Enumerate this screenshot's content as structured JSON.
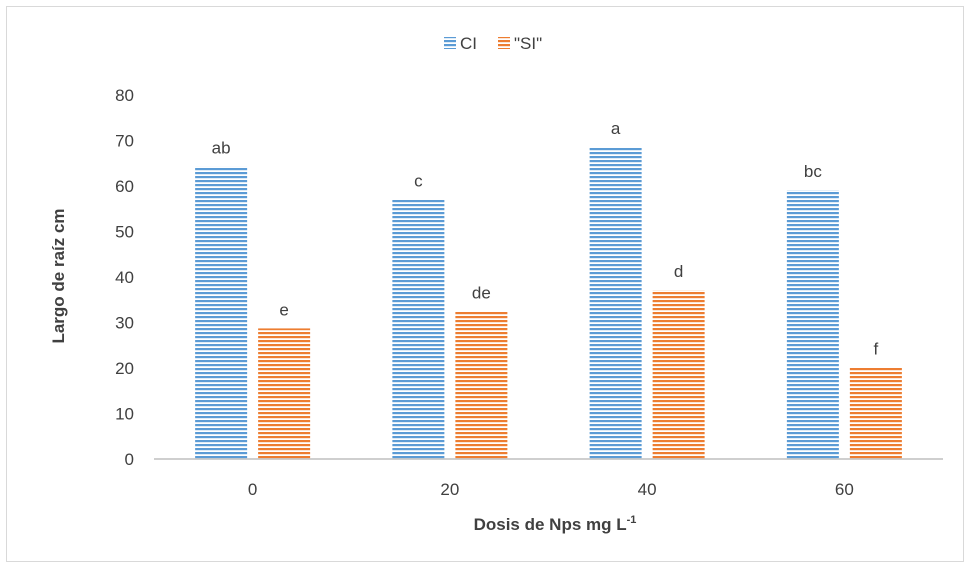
{
  "chart_data": {
    "type": "bar",
    "categories": [
      "0",
      "20",
      "40",
      "60"
    ],
    "series": [
      {
        "name": "CI",
        "color": "#5B9BD5",
        "values": [
          64.3,
          57.0,
          68.6,
          59.1
        ],
        "labels": [
          "ab",
          "c",
          "a",
          "bc"
        ]
      },
      {
        "name": "\"SI\"",
        "color": "#ED7D31",
        "values": [
          28.7,
          32.4,
          37.1,
          20.1
        ],
        "labels": [
          "e",
          "de",
          "d",
          "f"
        ]
      }
    ],
    "xlabel": "Dosis de Nps mg L",
    "xlabel_superscript": "-1",
    "ylabel": "Largo de raíz cm",
    "ylim": [
      0,
      80
    ],
    "yticks": [
      0,
      10,
      20,
      30,
      40,
      50,
      60,
      70,
      80
    ],
    "grid": false,
    "legend_position": "top-center",
    "bar_pattern": "horizontal-lines"
  }
}
